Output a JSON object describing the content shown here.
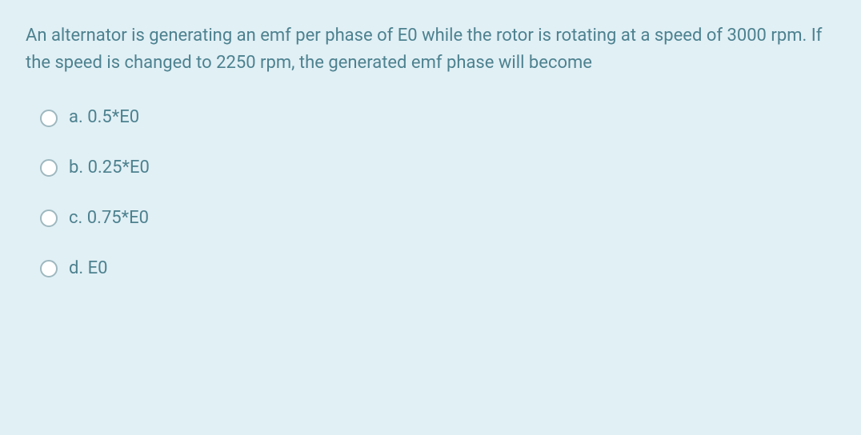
{
  "question": {
    "text": "An alternator is generating an emf per phase of E0 while the rotor is rotating at a speed of 3000 rpm. If the speed is changed to 2250 rpm, the generated emf phase will become"
  },
  "options": [
    {
      "label": "a. 0.5*E0"
    },
    {
      "label": "b. 0.25*E0"
    },
    {
      "label": "c. 0.75*E0"
    },
    {
      "label": "d. E0"
    }
  ],
  "colors": {
    "background": "#e1f0f5",
    "text": "#4d818f",
    "radio_border": "#9eb8bf",
    "radio_fill": "#ffffff"
  },
  "typography": {
    "question_fontsize": 22,
    "option_fontsize": 22,
    "line_height": 1.55
  }
}
